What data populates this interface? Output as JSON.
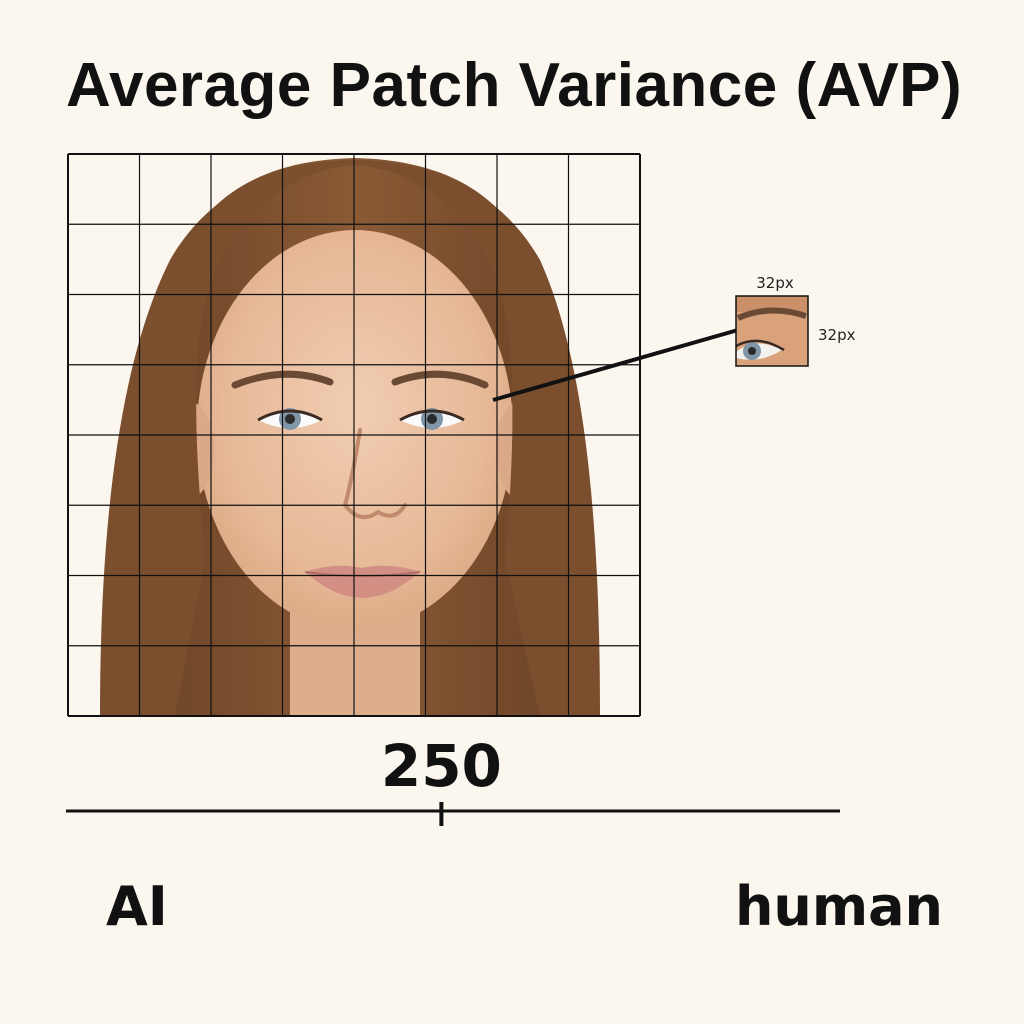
{
  "title": "Average Patch Variance (AVP)",
  "grid": {
    "rows": 8,
    "cols": 8
  },
  "patch": {
    "width_label": "32px",
    "height_label": "32px"
  },
  "scale": {
    "value": 250,
    "marker_fraction": 0.485,
    "left_label": "AI",
    "right_label": "human"
  },
  "colors": {
    "background": "#fbf6ee",
    "ink": "#111111",
    "hair": "#7a4e2d",
    "skin": "#e8bfa0"
  }
}
